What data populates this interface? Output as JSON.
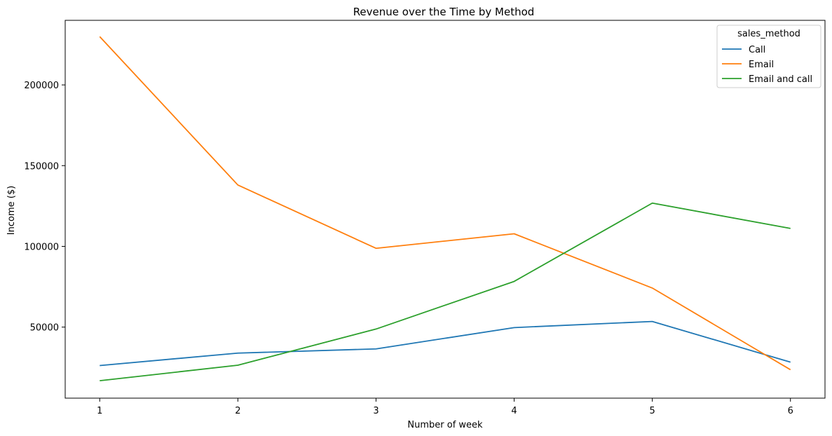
{
  "chart_data": {
    "type": "line",
    "title": "Revenue over the Time by Method",
    "xlabel": "Number of week",
    "ylabel": "Income ($)",
    "x": [
      1,
      2,
      3,
      4,
      5,
      6
    ],
    "xlim": [
      0.75,
      6.25
    ],
    "ylim": [
      6000,
      240000
    ],
    "yticks": [
      50000,
      100000,
      150000,
      200000
    ],
    "grid": false,
    "legend": {
      "title": "sales_method",
      "placement": "top-right"
    },
    "series": [
      {
        "name": "Call",
        "color": "#1f77b4",
        "values": [
          26200,
          33900,
          36500,
          49700,
          53500,
          28300
        ]
      },
      {
        "name": "Email",
        "color": "#ff7f0e",
        "values": [
          229900,
          138000,
          98800,
          107800,
          74200,
          23600
        ]
      },
      {
        "name": "Email and call",
        "color": "#2ca02c",
        "values": [
          16800,
          26400,
          48800,
          78300,
          126800,
          111100
        ]
      }
    ]
  }
}
